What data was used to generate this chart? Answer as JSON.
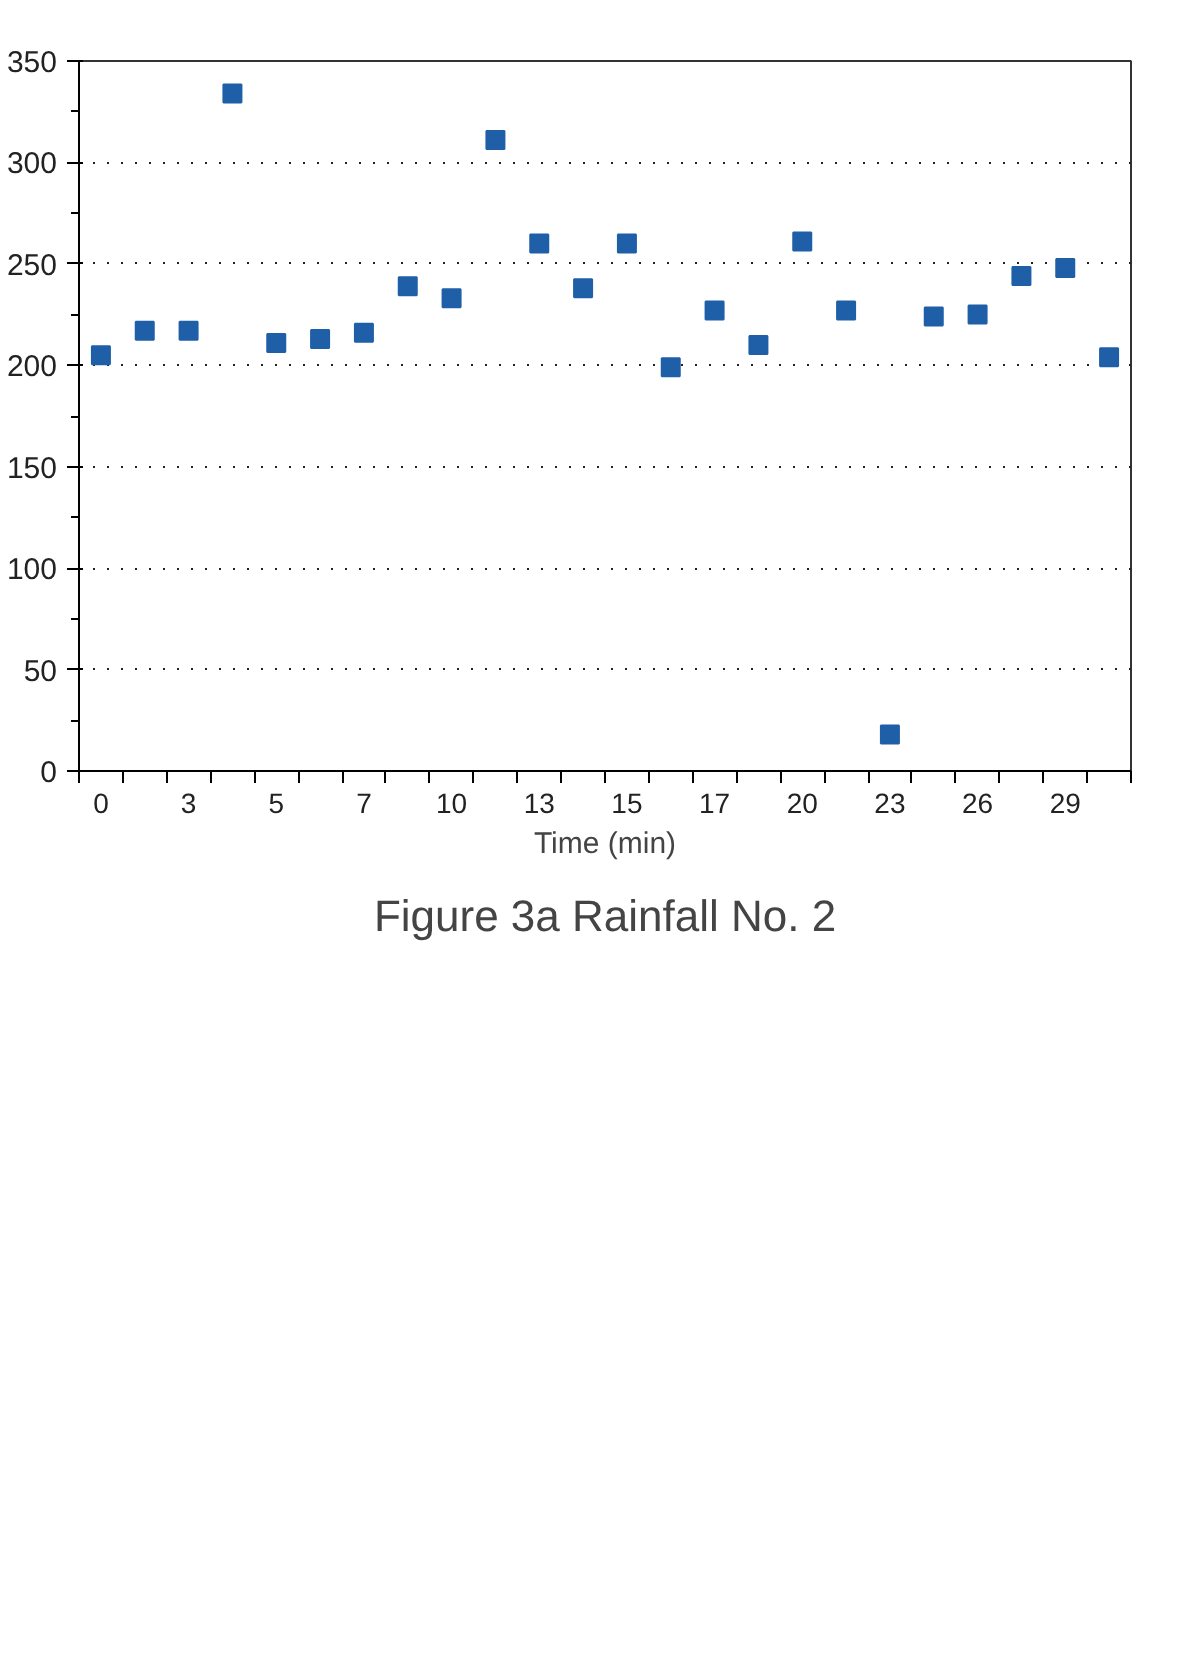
{
  "chart_data": {
    "type": "scatter",
    "title": "Figure 3a Rainfall No. 2",
    "xlabel": "Time (min)",
    "categories": [
      "0",
      null,
      "3",
      null,
      "5",
      null,
      "7",
      null,
      "10",
      null,
      "13",
      null,
      "15",
      null,
      "17",
      null,
      "20",
      null,
      "23",
      null,
      "26",
      null,
      "29",
      null
    ],
    "values": [
      205,
      217,
      217,
      334,
      211,
      213,
      216,
      239,
      233,
      311,
      260,
      238,
      260,
      199,
      227,
      210,
      261,
      227,
      18,
      224,
      225,
      244,
      248,
      204
    ],
    "color": "#1f5fa8",
    "marker": "square",
    "ylim": [
      0,
      350
    ],
    "yticks": [
      0,
      50,
      100,
      150,
      200,
      250,
      300,
      350
    ],
    "grid": "y"
  }
}
